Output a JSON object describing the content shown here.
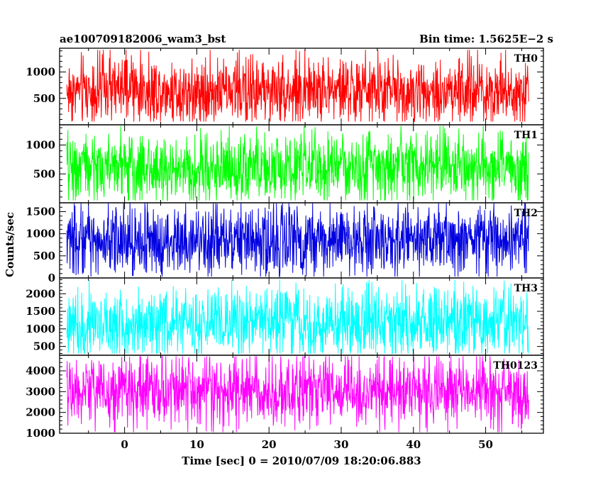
{
  "header": {
    "left": "ae100709182006_wam3_bst",
    "right": "Bin time: 1.5625E−2 s"
  },
  "chart_data": {
    "type": "line",
    "title": "ae100709182006_wam3_bst",
    "bin_time": "Bin time: 1.5625E−2 s",
    "xlabel": "Time [sec] 0 = 2010/07/09 18:20:06.883",
    "ylabel": "Counts/sec",
    "xlim": [
      -9,
      58
    ],
    "x_data_range": [
      -8,
      56
    ],
    "x_ticks": [
      0,
      10,
      20,
      30,
      40,
      50
    ],
    "x_tick_labels": [
      "0",
      "10",
      "20",
      "30",
      "40",
      "50"
    ],
    "series": [
      {
        "name": "TH0",
        "color": "#ff0000",
        "ylim": [
          0,
          1450
        ],
        "y_ticks": [
          500,
          1000
        ],
        "y_tick_labels": [
          "500",
          "1000"
        ],
        "mean": 650,
        "noise_min": 60,
        "noise_max": 1420
      },
      {
        "name": "TH1",
        "color": "#00ff00",
        "ylim": [
          0,
          1350
        ],
        "y_ticks": [
          500,
          1000
        ],
        "y_tick_labels": [
          "500",
          "1000"
        ],
        "mean": 600,
        "noise_min": 40,
        "noise_max": 1330
      },
      {
        "name": "TH2",
        "color": "#0000e0",
        "ylim": [
          0,
          1700
        ],
        "y_ticks": [
          0,
          500,
          1000,
          1500
        ],
        "y_tick_labels": [
          "0",
          "500",
          "1000",
          "1500"
        ],
        "mean": 850,
        "noise_min": 30,
        "noise_max": 1690
      },
      {
        "name": "TH3",
        "color": "#00ffff",
        "ylim": [
          250,
          2450
        ],
        "y_ticks": [
          500,
          1000,
          1500,
          2000
        ],
        "y_tick_labels": [
          "500",
          "1000",
          "1500",
          "2000"
        ],
        "mean": 1150,
        "noise_min": 300,
        "noise_max": 2400
      },
      {
        "name": "TH0123",
        "color": "#ff00ff",
        "ylim": [
          1000,
          4750
        ],
        "y_ticks": [
          1000,
          2000,
          3000,
          4000
        ],
        "y_tick_labels": [
          "1000",
          "2000",
          "3000",
          "4000"
        ],
        "mean": 3000,
        "noise_min": 1050,
        "noise_max": 4700
      }
    ]
  }
}
